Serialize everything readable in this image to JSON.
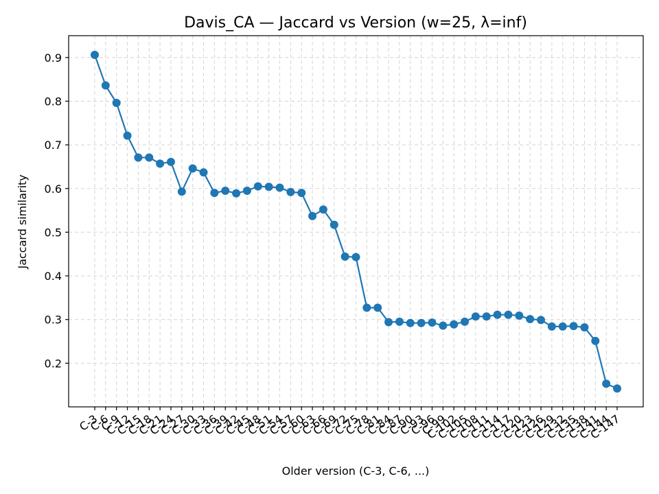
{
  "chart_data": {
    "type": "line",
    "title": "Davis_CA — Jaccard vs Version (w=25, λ=inf)",
    "xlabel": "Older version (C-3, C-6, ...)",
    "ylabel": "Jaccard similarity",
    "ylim": [
      0.1,
      0.95
    ],
    "yticks": [
      0.2,
      0.3,
      0.4,
      0.5,
      0.6,
      0.7,
      0.8,
      0.9
    ],
    "grid": true,
    "x": [
      "C-3",
      "C-6",
      "C-9",
      "C-12",
      "C-15",
      "C-18",
      "C-21",
      "C-24",
      "C-27",
      "C-30",
      "C-33",
      "C-36",
      "C-39",
      "C-42",
      "C-45",
      "C-48",
      "C-51",
      "C-54",
      "C-57",
      "C-60",
      "C-63",
      "C-66",
      "C-69",
      "C-72",
      "C-75",
      "C-78",
      "C-81",
      "C-84",
      "C-87",
      "C-90",
      "C-93",
      "C-96",
      "C-99",
      "C-102",
      "C-105",
      "C-108",
      "C-111",
      "C-114",
      "C-117",
      "C-120",
      "C-123",
      "C-126",
      "C-129",
      "C-132",
      "C-135",
      "C-138",
      "C-141",
      "C-144",
      "C-147"
    ],
    "series": [
      {
        "values": [
          0.906,
          0.836,
          0.796,
          0.721,
          0.671,
          0.671,
          0.657,
          0.661,
          0.593,
          0.646,
          0.637,
          0.59,
          0.595,
          0.589,
          0.595,
          0.605,
          0.604,
          0.602,
          0.592,
          0.59,
          0.537,
          0.552,
          0.517,
          0.444,
          0.443,
          0.327,
          0.327,
          0.294,
          0.295,
          0.292,
          0.292,
          0.293,
          0.286,
          0.289,
          0.295,
          0.307,
          0.307,
          0.311,
          0.311,
          0.309,
          0.301,
          0.299,
          0.284,
          0.284,
          0.285,
          0.282,
          0.251,
          0.153,
          0.142
        ],
        "color": "#1f77b4"
      }
    ]
  }
}
